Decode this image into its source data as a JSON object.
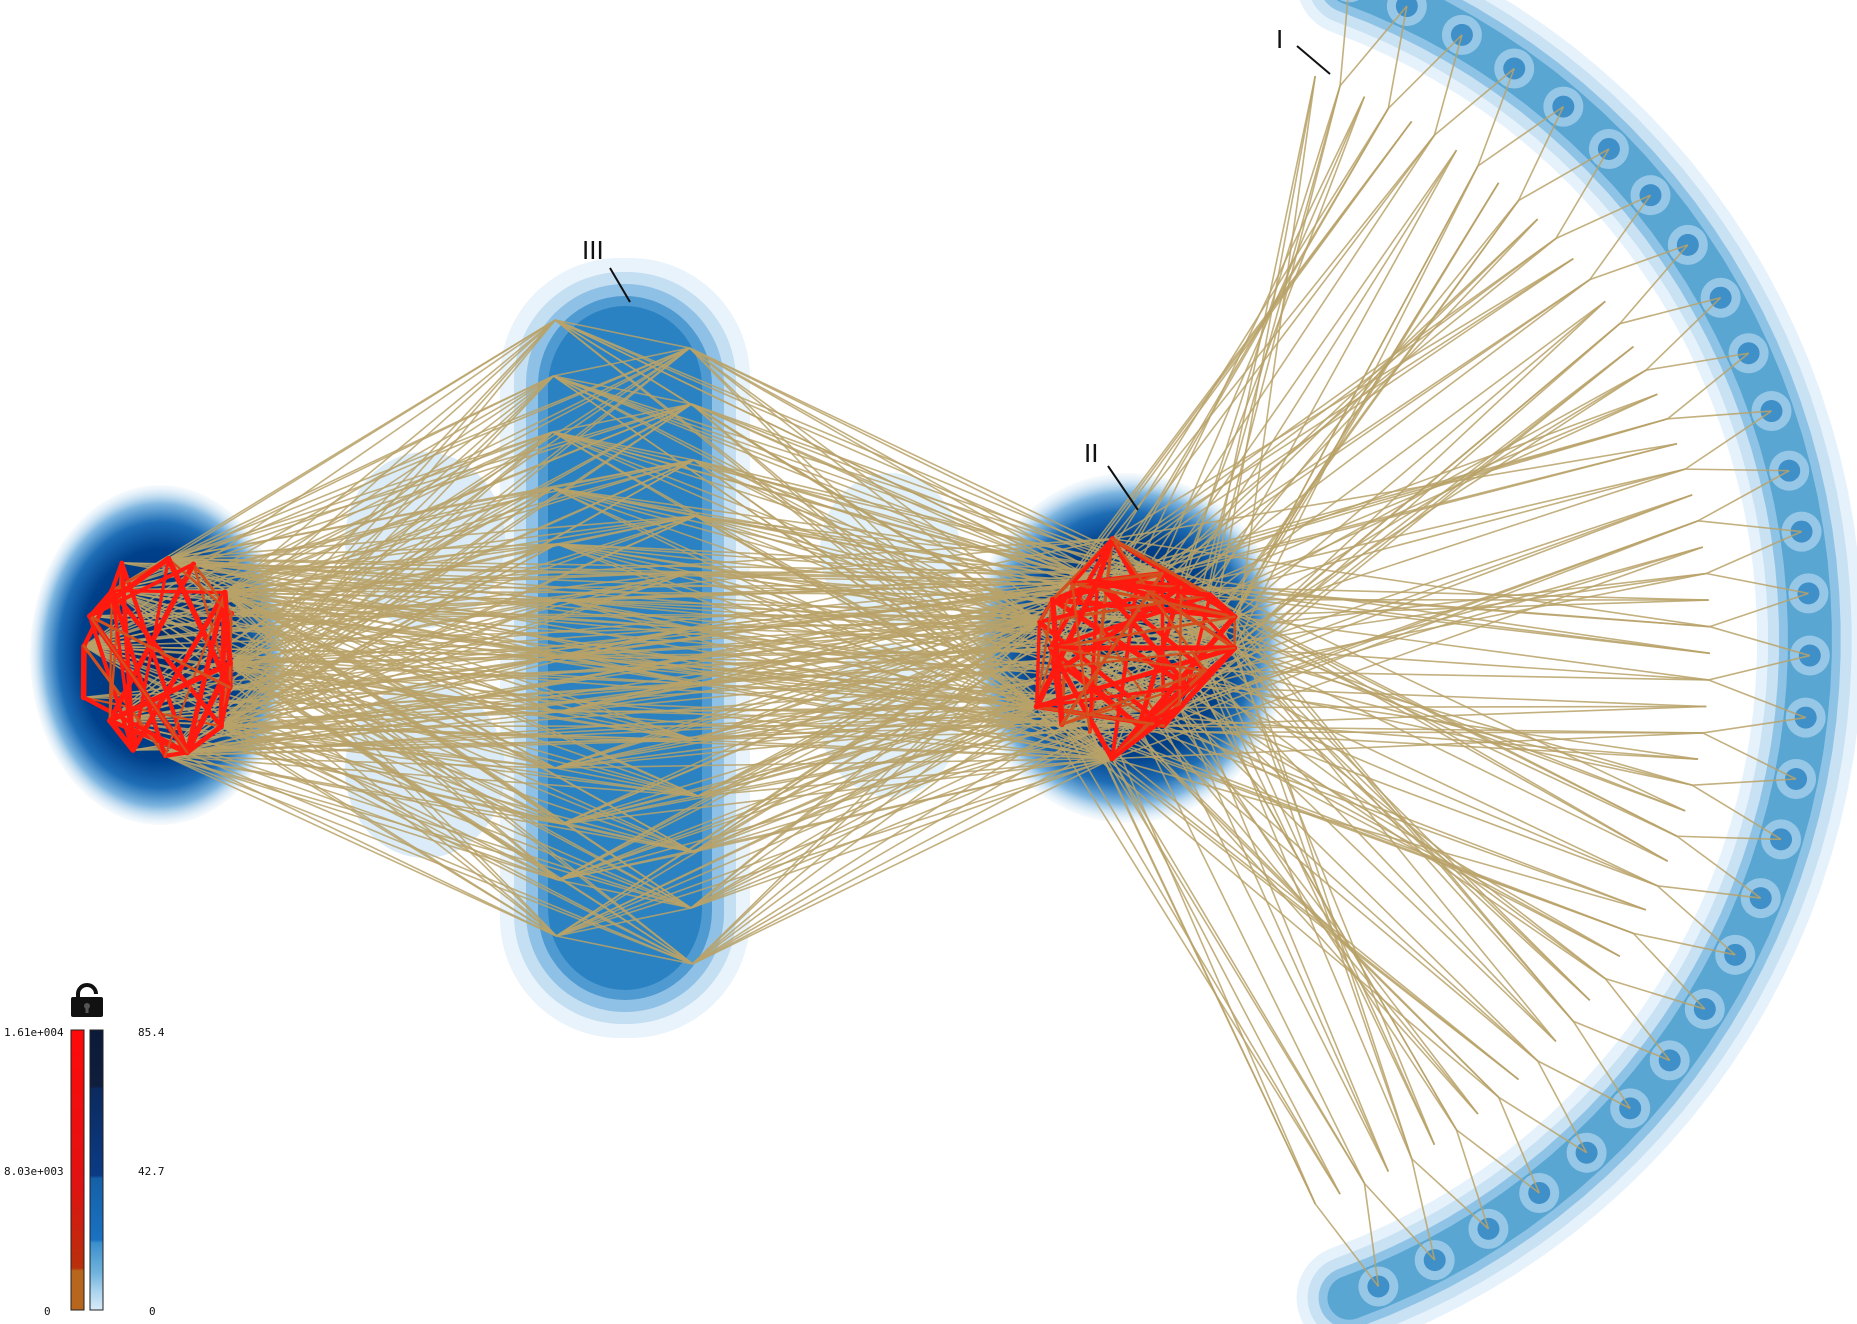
{
  "clusters": [
    {
      "id": "I",
      "label": "I"
    },
    {
      "id": "II",
      "label": "II"
    },
    {
      "id": "III",
      "label": "III"
    }
  ],
  "legend": {
    "lock_icon": "unlocked-padlock-icon",
    "edge_scale": {
      "max": "1.61e+004",
      "mid": "8.03e+003",
      "min": "0"
    },
    "density_scale": {
      "max": "85.4",
      "mid": "42.7",
      "min": "0"
    }
  },
  "colors": {
    "edge_intra": "#ff1a10",
    "edge_intra_low": "#d2501e",
    "edge_inter": "#b9a269",
    "density_dark": "#002b6b",
    "density_mid": "#1a6fb8",
    "density_light": "#5aa6d2",
    "density_halo": "#c6e0f2"
  }
}
